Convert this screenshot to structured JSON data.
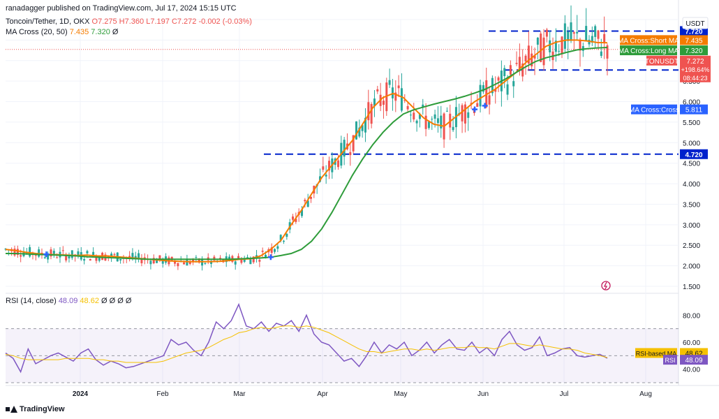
{
  "header": {
    "published": "ranadagger published on TradingView.com, Jul 17, 2024 15:15 UTC",
    "symbol_line": "Toncoin/Tether, 1D, OKX",
    "ohlc": {
      "o": "O7.275",
      "h": "H7.360",
      "l": "L7.197",
      "c": "C7.272",
      "chg": "-0.002 (-0.03%)"
    },
    "ma_line": {
      "label": "MA Cross (20, 50)",
      "short": "7.435",
      "long": "7.320",
      "extra": "Ø"
    },
    "rsi_line": {
      "label": "RSI (14, close)",
      "rsi": "48.09",
      "rsima": "48.62",
      "extra": "Ø Ø Ø Ø"
    }
  },
  "currency": "USDT",
  "footer": "TradingView",
  "colors": {
    "up": "#26a69a",
    "down": "#ef5350",
    "short_ma": "#f57c00",
    "long_ma": "#2e9c3a",
    "level": "#0022cc",
    "rsi": "#7e57c2",
    "rsi_ma": "#f5c000",
    "cross": "#2962ff"
  },
  "chart_data": [
    {
      "type": "candlestick",
      "title": "Toncoin/Tether, 1D, OKX",
      "x_ticks": [
        "2024",
        "Feb",
        "Mar",
        "Apr",
        "May",
        "Jun",
        "Jul",
        "Aug"
      ],
      "y_ticks": [
        "8.00",
        "7.500",
        "7.000",
        "6.500",
        "6.000",
        "5.500",
        "5.000",
        "4.500",
        "4.000",
        "3.500",
        "3.000",
        "2.500",
        "2.000",
        "1.500"
      ],
      "ylim": [
        1.5,
        8.0
      ],
      "levels": [
        {
          "value": 7.72,
          "label": "7.720"
        },
        {
          "value": 6.77,
          "label": "6.770"
        },
        {
          "value": 4.72,
          "label": "4.720"
        }
      ],
      "price_tags": [
        {
          "label": "MA Cross:Short MA",
          "value": "7.435"
        },
        {
          "label": "MA Cross:Long MA",
          "value": "7.320"
        },
        {
          "label": "TONUSDT",
          "value": "7.272",
          "change": "+198.64%",
          "countdown": "08:44:23"
        },
        {
          "label": "MA Cross:Cross",
          "value": "5.811"
        }
      ],
      "series": [
        {
          "name": "MA Cross:Short MA",
          "type": "line",
          "values": [
            2.4,
            2.37,
            2.33,
            2.3,
            2.28,
            2.27,
            2.26,
            2.25,
            2.26,
            2.24,
            2.24,
            2.22,
            2.2,
            2.18,
            2.16,
            2.14,
            2.12,
            2.11,
            2.1,
            2.1,
            2.1,
            2.11,
            2.13,
            2.16,
            2.17,
            2.24,
            2.4,
            2.62,
            3.0,
            3.35,
            3.75,
            4.15,
            4.45,
            4.75,
            5.05,
            5.45,
            5.85,
            6.1,
            6.2,
            6.1,
            5.85,
            5.6,
            5.45,
            5.4,
            5.6,
            5.8,
            6.0,
            6.15,
            6.3,
            6.5,
            6.7,
            6.95,
            7.15,
            7.35,
            7.45,
            7.5,
            7.5,
            7.48,
            7.44,
            7.435
          ]
        },
        {
          "name": "MA Cross:Long MA",
          "type": "line",
          "values": [
            2.3,
            2.3,
            2.29,
            2.28,
            2.27,
            2.26,
            2.25,
            2.24,
            2.22,
            2.21,
            2.2,
            2.19,
            2.18,
            2.17,
            2.16,
            2.16,
            2.16,
            2.16,
            2.16,
            2.16,
            2.16,
            2.16,
            2.16,
            2.17,
            2.18,
            2.19,
            2.21,
            2.25,
            2.3,
            2.4,
            2.6,
            2.9,
            3.3,
            3.75,
            4.2,
            4.6,
            4.95,
            5.25,
            5.5,
            5.7,
            5.8,
            5.87,
            5.94,
            6.0,
            6.06,
            6.13,
            6.21,
            6.3,
            6.42,
            6.55,
            6.7,
            6.85,
            6.98,
            7.07,
            7.13,
            7.2,
            7.26,
            7.29,
            7.31,
            7.32
          ]
        }
      ],
      "crosses": [
        {
          "index": 4,
          "value": 2.28
        },
        {
          "index": 26,
          "value": 2.21
        },
        {
          "index": 46,
          "value": 5.811
        },
        {
          "index": 47,
          "value": 5.9
        }
      ]
    },
    {
      "type": "line",
      "title": "RSI (14, close)",
      "ylim": [
        30,
        90
      ],
      "y_ticks": [
        "80.00",
        "60.00",
        "40.00"
      ],
      "band": [
        30,
        70
      ],
      "price_tags": [
        {
          "label": "RSI-based MA",
          "value": "48.62"
        },
        {
          "label": "RSI",
          "value": "48.09"
        }
      ],
      "series": [
        {
          "name": "RSI",
          "values": [
            52,
            48,
            38,
            55,
            44,
            47,
            50,
            52,
            49,
            46,
            52,
            55,
            47,
            43,
            46,
            44,
            41,
            42,
            44,
            46,
            48,
            50,
            62,
            58,
            60,
            54,
            50,
            60,
            75,
            70,
            76,
            88,
            72,
            70,
            75,
            68,
            74,
            72,
            76,
            68,
            80,
            66,
            60,
            58,
            52,
            46,
            48,
            42,
            50,
            60,
            52,
            58,
            55,
            60,
            50,
            54,
            60,
            52,
            58,
            62,
            55,
            54,
            60,
            52,
            56,
            50,
            62,
            68,
            58,
            54,
            56,
            64,
            50,
            52,
            55,
            56,
            50,
            49,
            50,
            51,
            48.09
          ]
        },
        {
          "name": "RSI-based MA",
          "values": [
            51,
            50,
            48,
            47,
            47,
            47,
            47,
            47,
            48,
            48,
            48,
            48,
            47,
            47,
            46,
            46,
            45,
            45,
            45,
            45,
            45,
            46,
            48,
            50,
            52,
            53,
            54,
            56,
            59,
            62,
            64,
            67,
            68,
            70,
            71,
            70,
            71,
            72,
            72,
            71,
            72,
            71,
            69,
            67,
            64,
            61,
            58,
            55,
            53,
            53,
            52,
            53,
            54,
            55,
            55,
            54,
            55,
            54,
            55,
            56,
            56,
            56,
            57,
            56,
            56,
            55,
            57,
            59,
            59,
            58,
            57,
            58,
            57,
            56,
            55,
            55,
            54,
            52,
            51,
            50,
            48.62
          ]
        }
      ]
    }
  ]
}
